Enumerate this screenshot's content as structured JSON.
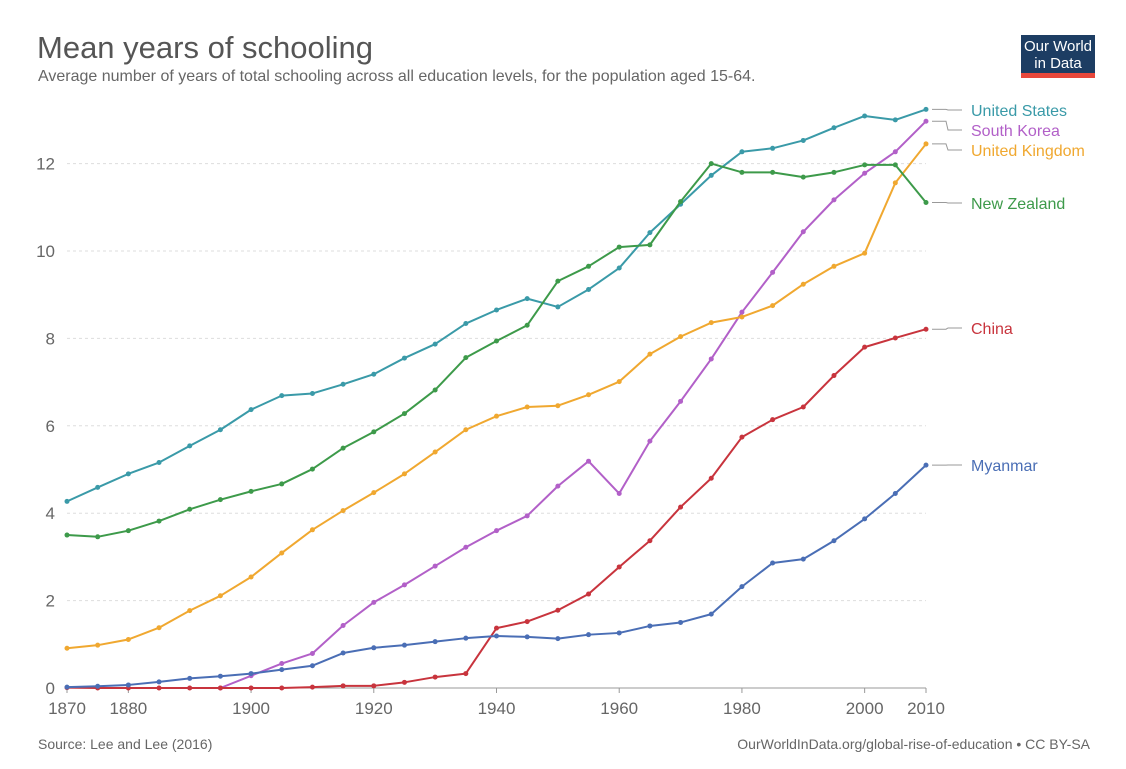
{
  "header": {
    "title": "Mean years of schooling",
    "subtitle": "Average number of years of total schooling across all education levels, for the population aged 15-64.",
    "logo_line1": "Our World",
    "logo_line2": "in Data"
  },
  "footer": {
    "source": "Source: Lee and Lee (2016)",
    "license": "OurWorldInData.org/global-rise-of-education • CC BY-SA"
  },
  "chart_data": {
    "type": "line",
    "title": "Mean years of schooling",
    "subtitle": "Average number of years of total schooling across all education levels, for the population aged 15-64.",
    "xlabel": "",
    "ylabel": "",
    "xlim": [
      1870,
      2010
    ],
    "ylim": [
      0,
      13.3
    ],
    "x_ticks": [
      "1870",
      "1880",
      "1900",
      "1920",
      "1940",
      "1960",
      "1980",
      "2000",
      "2010"
    ],
    "y_ticks": [
      "0",
      "2",
      "4",
      "6",
      "8",
      "10",
      "12"
    ],
    "grid": "horizontal dashed",
    "legend": "right, labels at line ends",
    "x": [
      1870,
      1875,
      1880,
      1885,
      1890,
      1895,
      1900,
      1905,
      1910,
      1915,
      1920,
      1925,
      1930,
      1935,
      1940,
      1945,
      1950,
      1955,
      1960,
      1965,
      1970,
      1975,
      1980,
      1985,
      1990,
      1995,
      2000,
      2005,
      2010
    ],
    "series": [
      {
        "name": "United States",
        "color": "#3a9aa8",
        "values": [
          4.27,
          4.59,
          4.9,
          5.16,
          5.54,
          5.91,
          6.37,
          6.69,
          6.74,
          6.95,
          7.18,
          7.55,
          7.87,
          8.34,
          8.65,
          8.91,
          8.72,
          9.12,
          9.61,
          10.42,
          11.07,
          11.73,
          12.27,
          12.35,
          12.53,
          12.82,
          13.09,
          13.0,
          13.24
        ]
      },
      {
        "name": "South Korea",
        "color": "#b260c8",
        "values": [
          null,
          null,
          null,
          null,
          null,
          0.0,
          0.28,
          0.56,
          0.79,
          1.43,
          1.96,
          2.36,
          2.79,
          3.22,
          3.6,
          3.94,
          4.62,
          5.19,
          4.45,
          5.65,
          6.56,
          7.53,
          8.6,
          9.51,
          10.44,
          11.17,
          11.78,
          12.27,
          12.97
        ]
      },
      {
        "name": "United Kingdom",
        "color": "#f0a830",
        "values": [
          0.91,
          0.98,
          1.11,
          1.38,
          1.77,
          2.11,
          2.54,
          3.09,
          3.62,
          4.06,
          4.47,
          4.9,
          5.4,
          5.91,
          6.22,
          6.43,
          6.46,
          6.71,
          7.01,
          7.64,
          8.04,
          8.36,
          8.49,
          8.75,
          9.24,
          9.65,
          9.95,
          11.56,
          12.45
        ]
      },
      {
        "name": "New Zealand",
        "color": "#3d9a4a",
        "values": [
          3.5,
          3.46,
          3.6,
          3.82,
          4.09,
          4.31,
          4.5,
          4.67,
          5.01,
          5.49,
          5.86,
          6.28,
          6.82,
          7.56,
          7.94,
          8.3,
          9.31,
          9.65,
          10.09,
          10.14,
          11.13,
          12.0,
          11.8,
          11.8,
          11.69,
          11.8,
          11.97,
          11.97,
          11.11
        ]
      },
      {
        "name": "China",
        "color": "#c8343d",
        "values": [
          0.01,
          0.0,
          0.0,
          0.0,
          0.0,
          0.0,
          0.0,
          0.0,
          0.02,
          0.05,
          0.05,
          0.13,
          0.25,
          0.33,
          1.37,
          1.52,
          1.78,
          2.15,
          2.77,
          3.37,
          4.14,
          4.8,
          5.74,
          6.14,
          6.43,
          7.15,
          7.8,
          8.01,
          8.21
        ]
      },
      {
        "name": "Myanmar",
        "color": "#4a6eb5",
        "values": [
          0.02,
          0.04,
          0.07,
          0.14,
          0.22,
          0.27,
          0.33,
          0.42,
          0.51,
          0.8,
          0.92,
          0.98,
          1.06,
          1.14,
          1.19,
          1.17,
          1.13,
          1.22,
          1.26,
          1.42,
          1.5,
          1.69,
          2.32,
          2.86,
          2.95,
          3.37,
          3.87,
          4.45,
          5.1
        ]
      }
    ]
  }
}
